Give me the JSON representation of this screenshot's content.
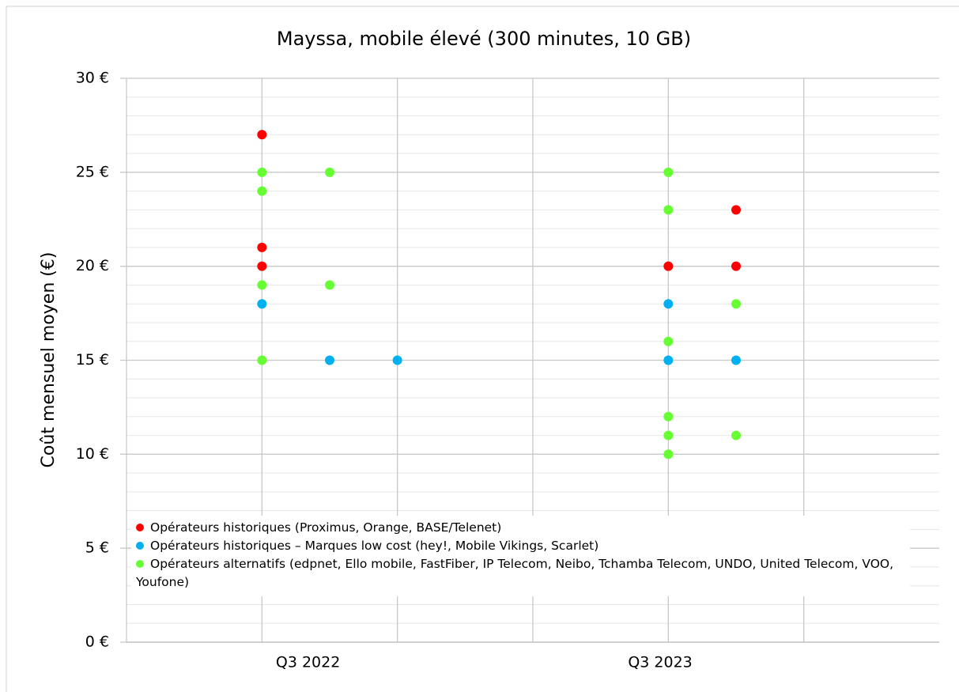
{
  "chart_data": {
    "type": "scatter",
    "title": "Mayssa, mobile élevé (300 minutes, 10 GB)",
    "ylabel": "Coût mensuel moyen (€)",
    "xlim": [
      0,
      6
    ],
    "xticks": [
      {
        "value": 1.34,
        "label": "Q3 2022"
      },
      {
        "value": 3.94,
        "label": "Q3 2023"
      }
    ],
    "xgrid": [
      1,
      2,
      3,
      4,
      5
    ],
    "ylim": [
      0,
      30
    ],
    "yticks": [
      {
        "value": 0,
        "label": "0 €"
      },
      {
        "value": 5,
        "label": "5 €"
      },
      {
        "value": 10,
        "label": "10 €"
      },
      {
        "value": 15,
        "label": "15 €"
      },
      {
        "value": 20,
        "label": "20 €"
      },
      {
        "value": 25,
        "label": "25 €"
      },
      {
        "value": 30,
        "label": "30 €"
      }
    ],
    "grid": true,
    "minor_grid": true,
    "series": [
      {
        "name": "Opérateurs historiques (Proximus, Orange, BASE/Telenet)",
        "color": "#ff0000",
        "x": [
          1,
          1,
          1,
          4,
          4.5,
          4.5
        ],
        "values": [
          27,
          21,
          20,
          20,
          23,
          20
        ]
      },
      {
        "name": "Opérateurs historiques – Marques low cost (hey!, Mobile Vikings, Scarlet)",
        "color": "#00b0f0",
        "x": [
          1,
          1.5,
          2,
          4,
          4,
          4.5
        ],
        "values": [
          18,
          15,
          15,
          18,
          15,
          15
        ]
      },
      {
        "name": "Opérateurs alternatifs (edpnet, Ello mobile, FastFiber, IP Telecom, Neibo, Tchamba Telecom, UNDO, United Telecom, VOO, Youfone)",
        "color": "#66ff33",
        "x": [
          1,
          1,
          1,
          1,
          1.5,
          1.5,
          4,
          4,
          4,
          4,
          4,
          4,
          4.5,
          4.5
        ],
        "values": [
          25,
          24,
          19,
          15,
          25,
          19,
          25,
          23,
          16,
          12,
          11,
          10,
          18,
          11
        ]
      }
    ]
  }
}
